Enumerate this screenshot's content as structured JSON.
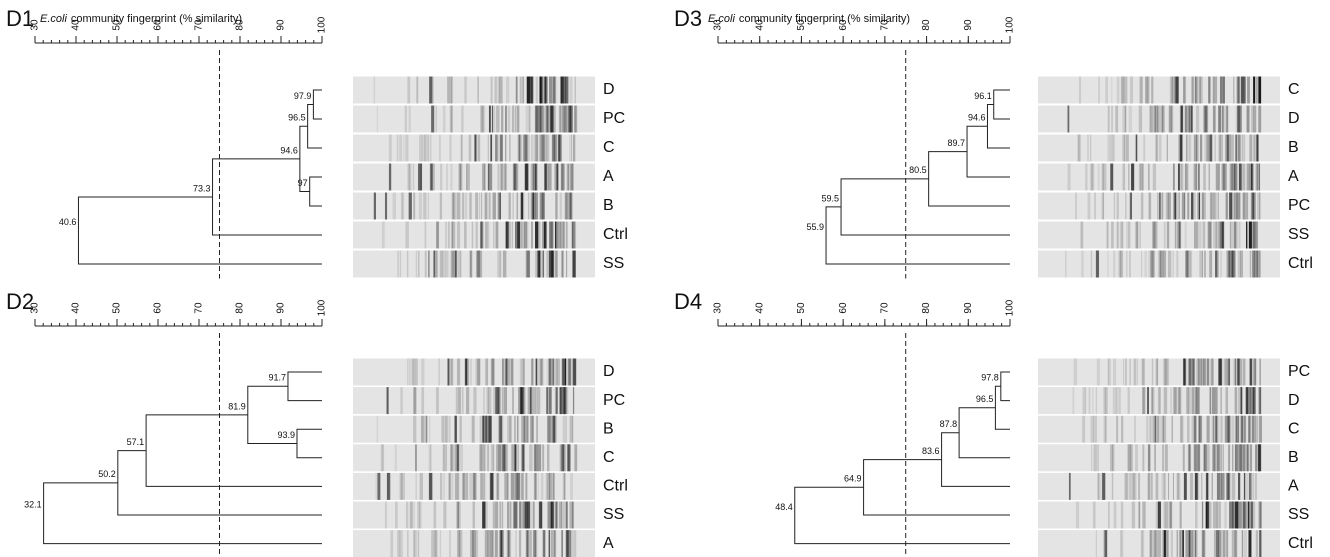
{
  "panels": [
    {
      "label": "D1",
      "title_italic": "E.coli",
      "title": "community fingerprint (% similarity)",
      "axis": {
        "ticks": [
          30,
          40,
          50,
          60,
          70,
          80,
          90,
          100
        ],
        "cutoff": 75
      },
      "tree": {
        "value": 40.6,
        "children": [
          {
            "value": 73.3,
            "children": [
              {
                "value": 94.6,
                "children": [
                  {
                    "value": 96.5,
                    "children": [
                      {
                        "value": 97.9,
                        "children": [
                          {
                            "label": "D"
                          },
                          {
                            "label": "PC"
                          }
                        ]
                      },
                      {
                        "label": "C"
                      }
                    ]
                  },
                  {
                    "value": 97,
                    "children": [
                      {
                        "label": "A"
                      },
                      {
                        "label": "B"
                      }
                    ]
                  }
                ]
              },
              {
                "label": "Ctrl"
              }
            ]
          },
          {
            "label": "SS"
          }
        ]
      }
    },
    {
      "label": "D3",
      "title_italic": "E.coli",
      "title": "community fingerprint (% similarity)",
      "axis": {
        "ticks": [
          30,
          40,
          50,
          60,
          70,
          80,
          90,
          100
        ],
        "cutoff": 75
      },
      "tree": {
        "value": 55.9,
        "children": [
          {
            "value": 59.5,
            "children": [
              {
                "value": 80.5,
                "children": [
                  {
                    "value": 89.7,
                    "children": [
                      {
                        "value": 94.6,
                        "children": [
                          {
                            "value": 96.1,
                            "children": [
                              {
                                "label": "C"
                              },
                              {
                                "label": "D"
                              }
                            ]
                          },
                          {
                            "label": "B"
                          }
                        ]
                      },
                      {
                        "label": "A"
                      }
                    ]
                  },
                  {
                    "label": "PC"
                  }
                ]
              },
              {
                "label": "SS"
              }
            ]
          },
          {
            "label": "Ctrl"
          }
        ]
      }
    },
    {
      "label": "D2",
      "axis": {
        "ticks": [
          30,
          40,
          50,
          60,
          70,
          80,
          90,
          100
        ],
        "cutoff": 75
      },
      "tree": {
        "value": 32.1,
        "children": [
          {
            "value": 50.2,
            "children": [
              {
                "value": 57.1,
                "children": [
                  {
                    "value": 81.9,
                    "children": [
                      {
                        "value": 91.7,
                        "children": [
                          {
                            "label": "D"
                          },
                          {
                            "label": "PC"
                          }
                        ]
                      },
                      {
                        "value": 93.9,
                        "children": [
                          {
                            "label": "B"
                          },
                          {
                            "label": "C"
                          }
                        ]
                      }
                    ]
                  },
                  {
                    "label": "Ctrl"
                  }
                ]
              },
              {
                "label": "SS"
              }
            ]
          },
          {
            "label": "A"
          }
        ]
      }
    },
    {
      "label": "D4",
      "axis": {
        "ticks": [
          30,
          40,
          50,
          60,
          70,
          80,
          90,
          100
        ],
        "cutoff": 75
      },
      "tree": {
        "value": 48.4,
        "children": [
          {
            "value": 64.9,
            "children": [
              {
                "value": 83.6,
                "children": [
                  {
                    "value": 87.8,
                    "children": [
                      {
                        "value": 96.5,
                        "children": [
                          {
                            "value": 97.8,
                            "children": [
                              {
                                "label": "PC"
                              },
                              {
                                "label": "D"
                              }
                            ]
                          },
                          {
                            "label": "C"
                          }
                        ]
                      },
                      {
                        "label": "B"
                      }
                    ]
                  },
                  {
                    "label": "A"
                  }
                ]
              },
              {
                "label": "SS"
              }
            ]
          },
          {
            "label": "Ctrl"
          }
        ]
      }
    }
  ]
}
